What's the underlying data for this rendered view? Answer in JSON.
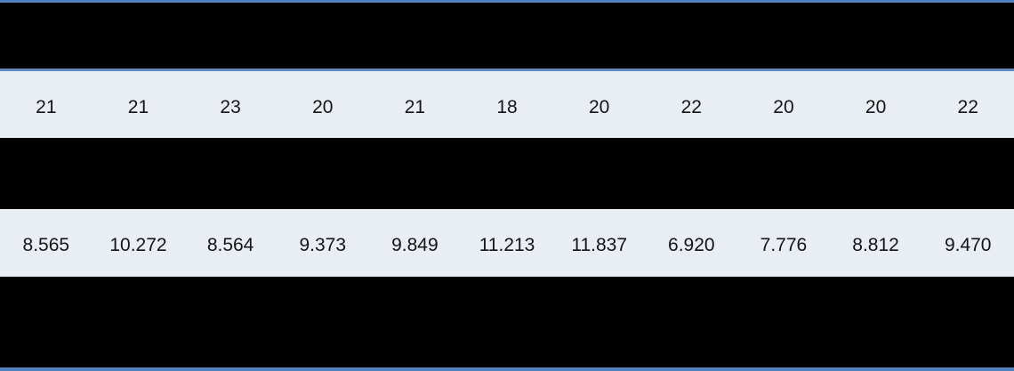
{
  "table": {
    "description_counts_row": "row of integer counts",
    "counts": [
      "21",
      "21",
      "23",
      "20",
      "21",
      "18",
      "20",
      "22",
      "20",
      "20",
      "22"
    ],
    "values": [
      "8.565",
      "10.272",
      "8.564",
      "9.373",
      "9.849",
      "11.213",
      "11.837",
      "6.920",
      "7.776",
      "8.812",
      "9.470"
    ]
  },
  "colors": {
    "accent_blue": "#4f81bd",
    "accent_blue_light": "#5d89bf",
    "band_light": "#e9edf4",
    "redacted_black": "#000000",
    "text_color": "#141414"
  }
}
